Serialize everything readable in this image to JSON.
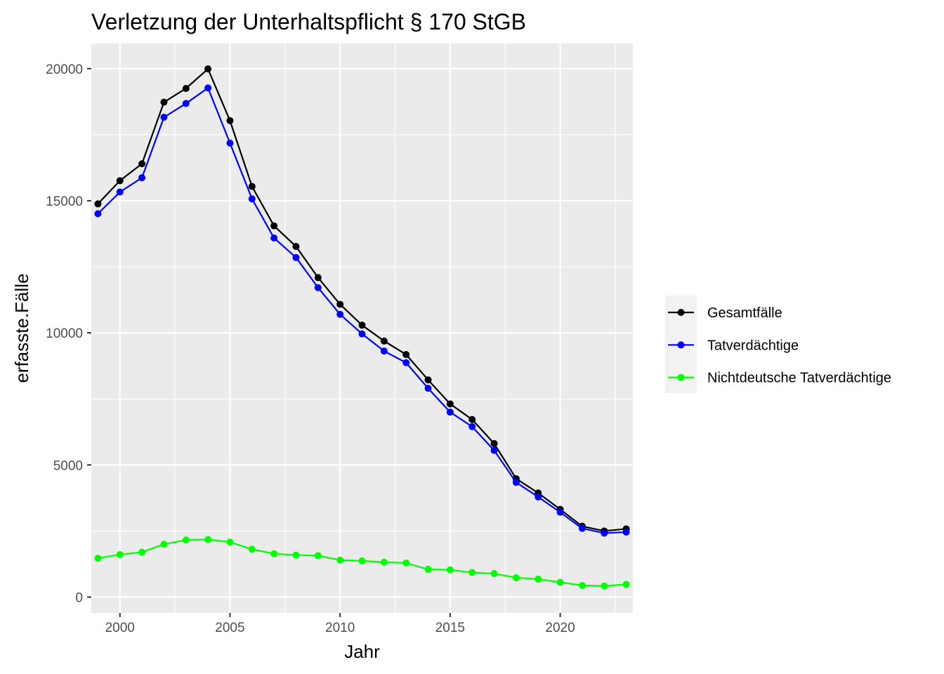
{
  "chart_data": {
    "type": "line",
    "title": "Verletzung der Unterhaltspflicht § 170 StGB",
    "xlabel": "Jahr",
    "ylabel": "erfasste.Fälle",
    "x": [
      1999,
      2000,
      2001,
      2002,
      2003,
      2004,
      2005,
      2006,
      2007,
      2008,
      2009,
      2010,
      2011,
      2012,
      2013,
      2014,
      2015,
      2016,
      2017,
      2018,
      2019,
      2020,
      2021,
      2022,
      2023
    ],
    "xlim": [
      1998.7,
      2023.3
    ],
    "ylim": [
      -600,
      20950
    ],
    "x_ticks": [
      2000,
      2005,
      2010,
      2015,
      2020
    ],
    "y_ticks": [
      0,
      5000,
      10000,
      15000,
      20000
    ],
    "grid": true,
    "legend_position": "right",
    "series": [
      {
        "name": "Gesamtfälle",
        "color": "#000000",
        "values": [
          14880,
          15760,
          16400,
          18730,
          19250,
          19990,
          18030,
          15540,
          14050,
          13270,
          12090,
          11080,
          10290,
          9690,
          9180,
          8220,
          7310,
          6720,
          5810,
          4480,
          3940,
          3320,
          2680,
          2500,
          2580
        ]
      },
      {
        "name": "Tatverdächtige",
        "color": "#0000ff",
        "values": [
          14510,
          15330,
          15870,
          18160,
          18680,
          19270,
          17180,
          15070,
          13590,
          12850,
          11710,
          10700,
          9960,
          9310,
          8870,
          7900,
          7000,
          6450,
          5550,
          4340,
          3790,
          3210,
          2600,
          2420,
          2460
        ]
      },
      {
        "name": "Nichtdeutsche Tatverdächtige",
        "color": "#00ff00",
        "values": [
          1470,
          1610,
          1700,
          2000,
          2160,
          2180,
          2080,
          1810,
          1640,
          1590,
          1570,
          1400,
          1370,
          1320,
          1290,
          1050,
          1030,
          930,
          890,
          730,
          680,
          560,
          440,
          420,
          480
        ]
      }
    ]
  }
}
